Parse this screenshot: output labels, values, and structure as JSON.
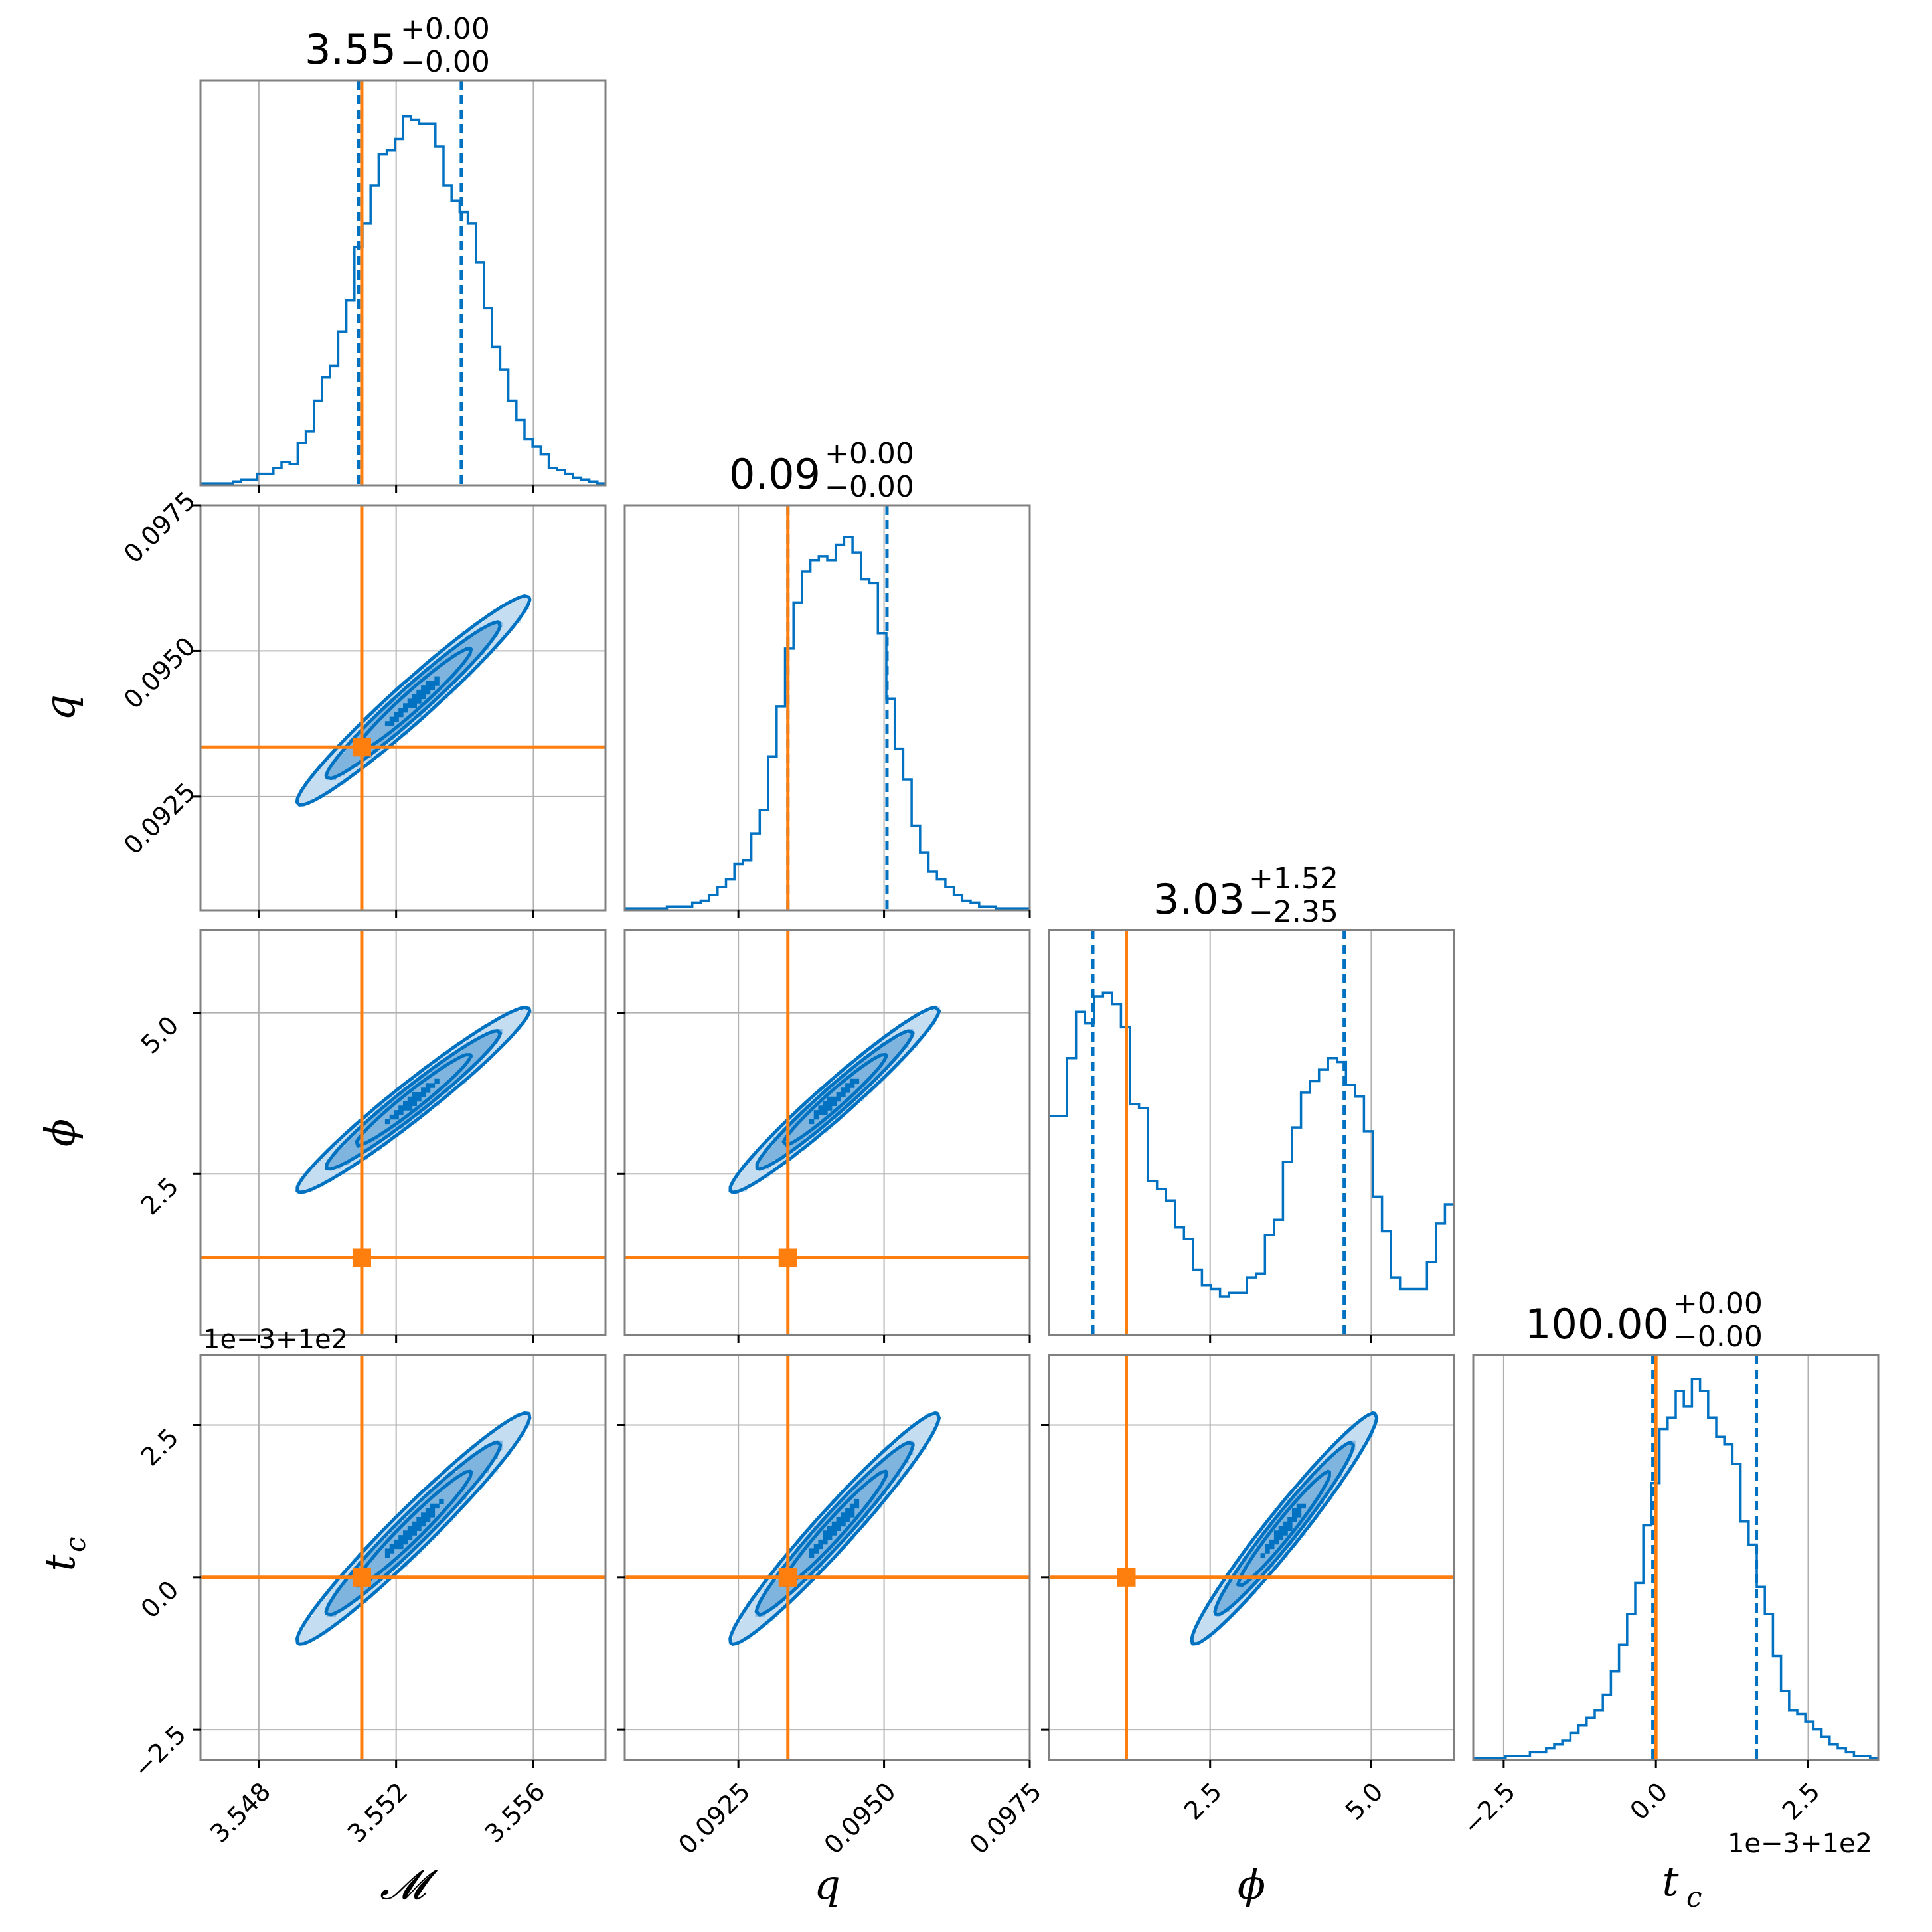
{
  "chart_data": {
    "type": "corner",
    "parameters": [
      {
        "key": "M",
        "label": "𝓜",
        "axis_range": [
          3.5463,
          3.5581
        ],
        "ticks": [
          3.548,
          3.552,
          3.556
        ],
        "tick_labels": [
          "3.548",
          "3.552",
          "3.556"
        ]
      },
      {
        "key": "q",
        "label": "q",
        "axis_range": [
          0.09055,
          0.0975
        ],
        "ticks": [
          0.0925,
          0.095,
          0.0975
        ],
        "tick_labels": [
          "0.0925",
          "0.0950",
          "0.0975"
        ]
      },
      {
        "key": "phi",
        "label": "ϕ",
        "axis_range": [
          0,
          6.2832
        ],
        "ticks": [
          2.5,
          5.0
        ],
        "tick_labels": [
          "2.5",
          "5.0"
        ]
      },
      {
        "key": "tc",
        "label": "t",
        "label_sub": "c",
        "axis_range": [
          -3.0,
          3.65
        ],
        "ticks": [
          -2.5,
          0.0,
          2.5
        ],
        "tick_labels": [
          "−2.5",
          "0.0",
          "2.5"
        ],
        "offset_text": "1e−3+1e2"
      }
    ],
    "titles": [
      {
        "value": "3.55",
        "plus": "+0.00",
        "minus": "−0.00"
      },
      {
        "value": "0.09",
        "plus": "+0.00",
        "minus": "−0.00"
      },
      {
        "value": "3.03",
        "plus": "+1.52",
        "minus": "−2.35"
      },
      {
        "value": "100.00",
        "plus": "+0.00",
        "minus": "−0.00"
      }
    ],
    "truth": {
      "M": 3.551,
      "q": 0.09335,
      "phi": 1.2,
      "tc": 0.0
    },
    "quantiles": {
      "M": [
        3.5509,
        3.5539
      ],
      "q": [
        0.09335,
        0.09505
      ],
      "phi": [
        0.68,
        4.58
      ],
      "tc": [
        -0.05,
        1.65
      ]
    },
    "histograms": {
      "M": {
        "edges_range": [
          3.5463,
          3.5581
        ],
        "values": [
          0.5,
          0.5,
          0.5,
          0.5,
          1,
          1.5,
          1.5,
          3,
          3,
          4.5,
          6,
          5.5,
          11,
          14,
          22,
          28,
          31,
          40,
          48,
          62,
          68,
          78,
          86,
          87,
          90,
          96,
          95,
          94,
          94,
          88,
          78,
          74,
          71,
          68,
          58,
          46,
          36,
          30,
          22,
          17,
          12,
          10,
          8,
          4.5,
          4,
          3,
          2,
          1.5,
          1,
          0.5
        ]
      },
      "q": {
        "edges_range": [
          0.09055,
          0.0975
        ],
        "values": [
          0.5,
          0.5,
          0.5,
          0.5,
          0.5,
          1,
          1,
          1,
          2,
          2.5,
          4,
          6,
          8,
          12,
          13,
          20,
          26,
          40,
          53,
          68,
          80,
          88,
          91,
          92,
          91,
          95,
          97,
          93,
          86,
          85,
          72,
          55,
          42,
          34,
          22,
          15,
          10,
          8,
          6,
          4,
          2.5,
          2,
          1,
          1,
          0.5,
          0.5,
          0.5,
          0.5
        ]
      },
      "phi": {
        "edges_range": [
          0,
          6.2832
        ],
        "values": [
          57,
          57,
          72,
          84,
          81,
          88,
          89,
          86,
          80,
          60,
          59,
          40,
          38,
          35,
          28,
          25,
          17,
          13,
          12,
          10,
          11,
          11,
          15,
          16,
          26,
          30,
          45,
          54,
          63,
          66,
          69,
          72,
          71,
          65,
          62,
          53,
          36,
          27,
          15,
          12,
          12,
          12,
          19,
          29,
          34
        ]
      },
      "tc": {
        "edges_range": [
          -3.0,
          3.65
        ],
        "values": [
          0.5,
          0.5,
          0.5,
          0.5,
          1,
          1,
          1,
          2,
          2,
          3,
          4,
          5,
          7,
          9,
          11,
          13,
          17,
          23,
          30,
          38,
          46,
          61,
          72,
          86,
          89,
          96,
          92,
          99,
          96,
          89,
          84,
          82,
          77,
          62,
          56,
          45,
          38,
          27,
          18,
          13,
          12,
          10,
          8,
          6,
          4,
          3,
          2,
          1,
          1,
          0.5
        ]
      }
    },
    "contours_2d": "Gaussian posterior 2D histograms with contour levels at 0.5,1,1.5,2 sigma; phi is wrapped modulo 2π producing multiple diagonal bands",
    "colors": {
      "series": "#0072C1",
      "truth": "#FF7F0E",
      "fill_light": "#C4DDF1",
      "fill_mid": "#7FB4DE",
      "fill_dark": "#0072C1",
      "frame": "#808080",
      "grid": "#B0B0B0"
    }
  }
}
